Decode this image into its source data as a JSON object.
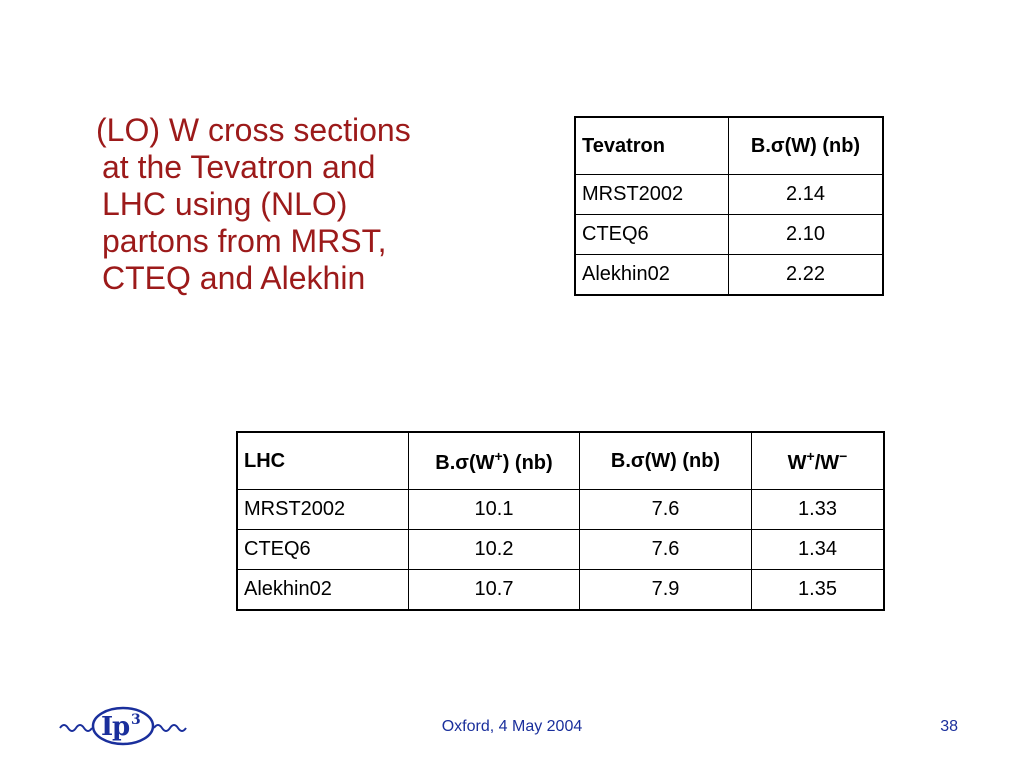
{
  "bullet": {
    "lines": [
      "(LO) W cross sections",
      "at the Tevatron and",
      "LHC using (NLO)",
      "partons from MRST,",
      "CTEQ and Alekhin"
    ]
  },
  "tevatron_table": {
    "header": [
      "Tevatron",
      "B.σ(W) (nb)"
    ],
    "rows": [
      [
        "MRST2002",
        "2.14"
      ],
      [
        "CTEQ6",
        "2.10"
      ],
      [
        "Alekhin02",
        "2.22"
      ]
    ]
  },
  "lhc_table": {
    "header": {
      "c0": "LHC",
      "c1_pre": "B.σ(W",
      "c1_sup": "+",
      "c1_post": ") (nb)",
      "c2": "B.σ(W) (nb)",
      "c3_a": "W",
      "c3_sup1": "+",
      "c3_mid": "/W",
      "c3_sup2": "−"
    },
    "rows": [
      [
        "MRST2002",
        "10.1",
        "7.6",
        "1.33"
      ],
      [
        "CTEQ6",
        "10.2",
        "7.6",
        "1.34"
      ],
      [
        "Alekhin02",
        "10.7",
        "7.9",
        "1.35"
      ]
    ]
  },
  "footer": {
    "center_text": "Oxford, 4 May 2004",
    "page_number": "38",
    "logo_text": "IP3",
    "logo_color": "#1a2f9c"
  },
  "colors": {
    "text_red": "#9c1a1a",
    "footer_blue": "#1a2f9c"
  }
}
